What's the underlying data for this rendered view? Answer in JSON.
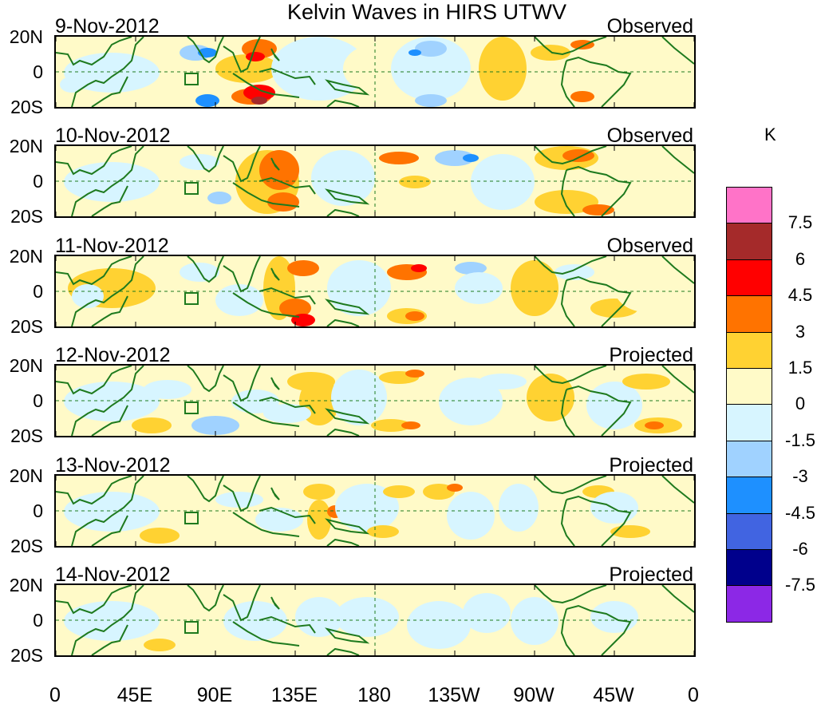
{
  "title": "Kelvin Waves in HIRS UTWV",
  "panels": [
    {
      "date": "9-Nov-2012",
      "status": "Observed"
    },
    {
      "date": "10-Nov-2012",
      "status": "Observed"
    },
    {
      "date": "11-Nov-2012",
      "status": "Observed"
    },
    {
      "date": "12-Nov-2012",
      "status": "Projected"
    },
    {
      "date": "13-Nov-2012",
      "status": "Projected"
    },
    {
      "date": "14-Nov-2012",
      "status": "Projected"
    }
  ],
  "lat_labels": [
    "20N",
    "0",
    "20S"
  ],
  "lon_labels": [
    "0",
    "45E",
    "90E",
    "135E",
    "180",
    "135W",
    "90W",
    "45W",
    "0"
  ],
  "colorbar": {
    "unit": "K",
    "labels": [
      "7.5",
      "6",
      "4.5",
      "3",
      "1.5",
      "0",
      "-1.5",
      "-3",
      "-4.5",
      "-6",
      "-7.5"
    ],
    "colors": [
      "#ff73c8",
      "#a52a2a",
      "#ff0000",
      "#ff7300",
      "#ffd232",
      "#fffac8",
      "#d7f5ff",
      "#a0d2ff",
      "#1e90ff",
      "#4164e1",
      "#00008c",
      "#8c28e6"
    ]
  }
}
